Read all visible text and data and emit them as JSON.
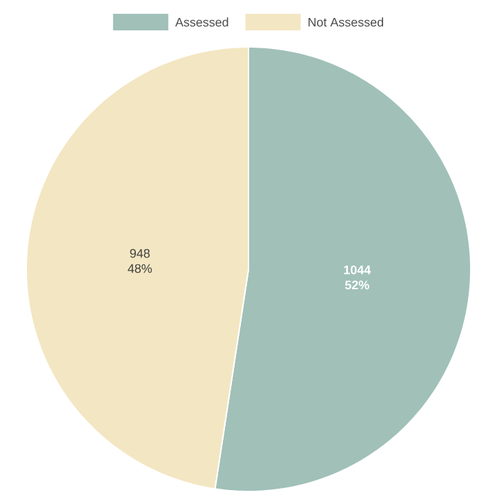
{
  "chart_data": {
    "type": "pie",
    "categories": [
      "Assessed",
      "Not Assessed"
    ],
    "values": [
      1044,
      948
    ],
    "colors": [
      "#a0c0b8",
      "#f3e6c2"
    ],
    "value_labels": [
      "1044 52%",
      "948 48%"
    ],
    "legend": "top"
  }
}
